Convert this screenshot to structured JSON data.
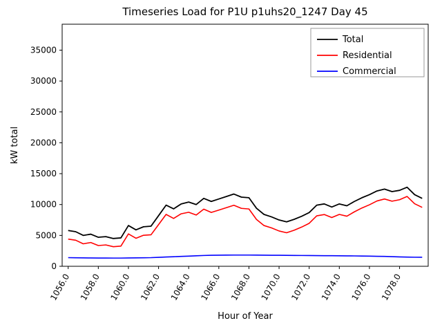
{
  "chart_data": {
    "type": "line",
    "title": "Timeseries Load for P1U p1uhs20_1247  Day 45",
    "xlabel": "Hour of Year",
    "ylabel": "kW total",
    "grid": false,
    "legend_position": "upper right",
    "xlim": [
      1055.6,
      1079.9
    ],
    "ylim": [
      0,
      39200
    ],
    "x_ticks": [
      1056,
      1058,
      1060,
      1062,
      1064,
      1066,
      1068,
      1070,
      1072,
      1074,
      1076,
      1078
    ],
    "x_tick_labels": [
      "1056.0",
      "1058.0",
      "1060.0",
      "1062.0",
      "1064.0",
      "1066.0",
      "1068.0",
      "1070.0",
      "1072.0",
      "1074.0",
      "1076.0",
      "1078.0"
    ],
    "y_ticks": [
      0,
      5000,
      10000,
      15000,
      20000,
      25000,
      30000,
      35000
    ],
    "y_tick_labels": [
      "0",
      "5000",
      "10000",
      "15000",
      "20000",
      "25000",
      "30000",
      "35000"
    ],
    "x": [
      1056.0,
      1056.5,
      1057.0,
      1057.5,
      1058.0,
      1058.5,
      1059.0,
      1059.5,
      1060.0,
      1060.5,
      1061.0,
      1061.5,
      1062.0,
      1062.5,
      1063.0,
      1063.5,
      1064.0,
      1064.5,
      1065.0,
      1065.5,
      1066.0,
      1066.5,
      1067.0,
      1067.5,
      1068.0,
      1068.5,
      1069.0,
      1069.5,
      1070.0,
      1070.5,
      1071.0,
      1071.5,
      1072.0,
      1072.5,
      1073.0,
      1073.5,
      1074.0,
      1074.5,
      1075.0,
      1075.5,
      1076.0,
      1076.5,
      1077.0,
      1077.5,
      1078.0,
      1078.5,
      1079.0,
      1079.5
    ],
    "series": [
      {
        "name": "Total",
        "color": "#000000",
        "values": [
          5800,
          5600,
          5000,
          5200,
          4700,
          4800,
          4500,
          4600,
          6600,
          5900,
          6400,
          6500,
          8200,
          9900,
          9300,
          10100,
          10400,
          10000,
          11000,
          10500,
          10900,
          11300,
          11700,
          11200,
          11100,
          9400,
          8400,
          8000,
          7500,
          7200,
          7600,
          8100,
          8700,
          9900,
          10100,
          9600,
          10100,
          9800,
          10500,
          11100,
          11600,
          12200,
          12500,
          12100,
          12300,
          12800,
          11600,
          11000
        ]
      },
      {
        "name": "Residential",
        "color": "#ff0000",
        "values": [
          4400,
          4220,
          3640,
          3850,
          3360,
          3460,
          3170,
          3270,
          5250,
          4540,
          5020,
          5100,
          6750,
          8400,
          7750,
          8500,
          8750,
          8300,
          9250,
          8720,
          9100,
          9490,
          9880,
          9380,
          9280,
          7590,
          6600,
          6210,
          5720,
          5430,
          5840,
          6350,
          6960,
          8170,
          8380,
          7890,
          8400,
          8110,
          8820,
          9440,
          9960,
          10580,
          10900,
          10540,
          10780,
          11310,
          10130,
          9540
        ]
      },
      {
        "name": "Commercial",
        "color": "#0000ff",
        "values": [
          1400,
          1380,
          1360,
          1350,
          1340,
          1340,
          1330,
          1330,
          1350,
          1360,
          1380,
          1400,
          1450,
          1500,
          1550,
          1600,
          1650,
          1700,
          1750,
          1780,
          1800,
          1810,
          1820,
          1820,
          1820,
          1810,
          1800,
          1790,
          1780,
          1770,
          1760,
          1750,
          1740,
          1730,
          1720,
          1710,
          1700,
          1690,
          1680,
          1660,
          1640,
          1620,
          1600,
          1560,
          1520,
          1490,
          1470,
          1460
        ]
      }
    ]
  }
}
